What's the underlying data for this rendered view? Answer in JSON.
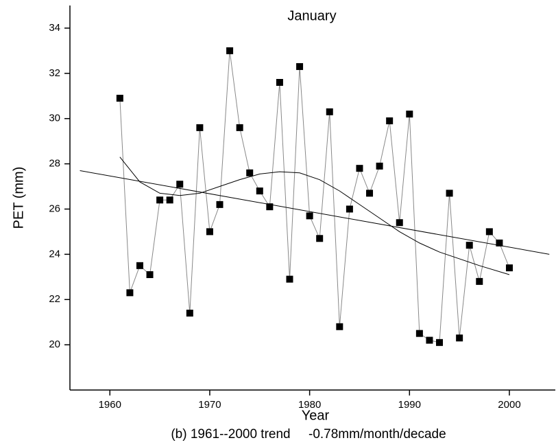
{
  "chart_data": {
    "type": "line",
    "title": "January",
    "xlabel": "Year",
    "ylabel": "PET (mm)",
    "caption": "(b) 1961--2000 trend     -0.78mm/month/decade",
    "xlim": [
      1956,
      2004.6
    ],
    "ylim": [
      18,
      35
    ],
    "xticks": [
      1960,
      1970,
      1980,
      1990,
      2000
    ],
    "yticks": [
      20,
      22,
      24,
      26,
      28,
      30,
      32,
      34
    ],
    "series": [
      {
        "color": "#000000",
        "line_color": "#888888",
        "marker": "square",
        "x": [
          1961,
          1962,
          1963,
          1964,
          1965,
          1966,
          1967,
          1968,
          1969,
          1970,
          1971,
          1972,
          1973,
          1974,
          1975,
          1976,
          1977,
          1978,
          1979,
          1980,
          1981,
          1982,
          1983,
          1984,
          1985,
          1986,
          1987,
          1988,
          1989,
          1990,
          1991,
          1992,
          1993,
          1994,
          1995,
          1996,
          1997,
          1998,
          1999,
          2000
        ],
        "values": [
          30.9,
          22.3,
          23.5,
          23.1,
          26.4,
          26.4,
          27.1,
          21.4,
          29.6,
          25.0,
          26.2,
          33.0,
          29.6,
          27.6,
          26.8,
          26.1,
          31.6,
          22.9,
          32.3,
          25.7,
          24.7,
          30.3,
          20.8,
          26.0,
          27.8,
          26.7,
          27.9,
          29.9,
          25.4,
          30.2,
          20.5,
          20.2,
          20.1,
          26.7,
          20.3,
          24.4,
          22.8,
          25.0,
          24.5,
          23.4
        ]
      },
      {
        "color": "#000000",
        "marker": "none",
        "x": [
          1957,
          2004
        ],
        "values": [
          27.7,
          24.0
        ]
      },
      {
        "color": "#000000",
        "marker": "none",
        "x": [
          1961,
          1963,
          1965,
          1967,
          1969,
          1971,
          1973,
          1975,
          1977,
          1979,
          1981,
          1983,
          1985,
          1987,
          1989,
          1991,
          1993,
          1995,
          1997,
          2000
        ],
        "values": [
          28.3,
          27.2,
          26.7,
          26.6,
          26.7,
          27.0,
          27.3,
          27.55,
          27.65,
          27.6,
          27.3,
          26.8,
          26.2,
          25.6,
          25.0,
          24.5,
          24.1,
          23.8,
          23.5,
          23.1
        ]
      }
    ]
  }
}
